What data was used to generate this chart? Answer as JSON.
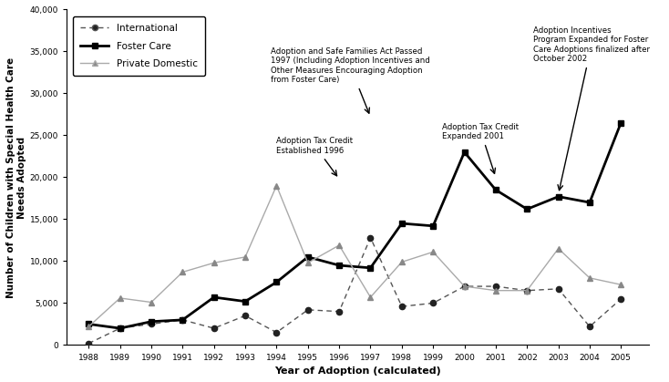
{
  "years": [
    1988,
    1989,
    1990,
    1991,
    1992,
    1993,
    1994,
    1995,
    1996,
    1997,
    1998,
    1999,
    2000,
    2001,
    2002,
    2003,
    2004,
    2005
  ],
  "international": [
    200,
    2000,
    2500,
    3000,
    2000,
    3500,
    1500,
    4200,
    4000,
    12800,
    4600,
    5000,
    7000,
    7000,
    6500,
    6700,
    2200,
    5500
  ],
  "foster_care": [
    2500,
    2000,
    2800,
    3000,
    5700,
    5200,
    7500,
    10500,
    9500,
    9200,
    14500,
    14200,
    23000,
    18500,
    16200,
    17700,
    17000,
    26500
  ],
  "private_domestic": [
    2200,
    5600,
    5100,
    8700,
    9800,
    10500,
    19000,
    9800,
    11900,
    5700,
    9900,
    11100,
    7000,
    6500,
    6500,
    11500,
    8000,
    7200
  ],
  "ylim": [
    0,
    40000
  ],
  "yticks": [
    0,
    5000,
    10000,
    15000,
    20000,
    25000,
    30000,
    35000,
    40000
  ],
  "ytick_labels": [
    "0",
    "5,000",
    "10,000",
    "15,000",
    "20,000",
    "25,000",
    "30,000",
    "35,000",
    "40,000"
  ],
  "xlabel": "Year of Adoption (calculated)",
  "ylabel": "Number of Children with Special Health Care\nNeeds Adopted",
  "bg_color": "#ffffff",
  "line_color_intl": "#555555",
  "line_color_foster": "#000000",
  "line_color_private": "#aaaaaa",
  "annotation1_text": "Adoption and Safe Families Act Passed\n1997 (Including Adoption Incentives and\nOther Measures Encouraging Adoption\nfrom Foster Care)",
  "annotation2_text": "Adoption Tax Credit\nEstablished 1996",
  "annotation3_text": "Adoption Tax Credit\nExpanded 2001",
  "annotation4_text": "Adoption Incentives\nProgram Expanded for Foster\nCare Adoptions finalized after\nOctober 2002"
}
